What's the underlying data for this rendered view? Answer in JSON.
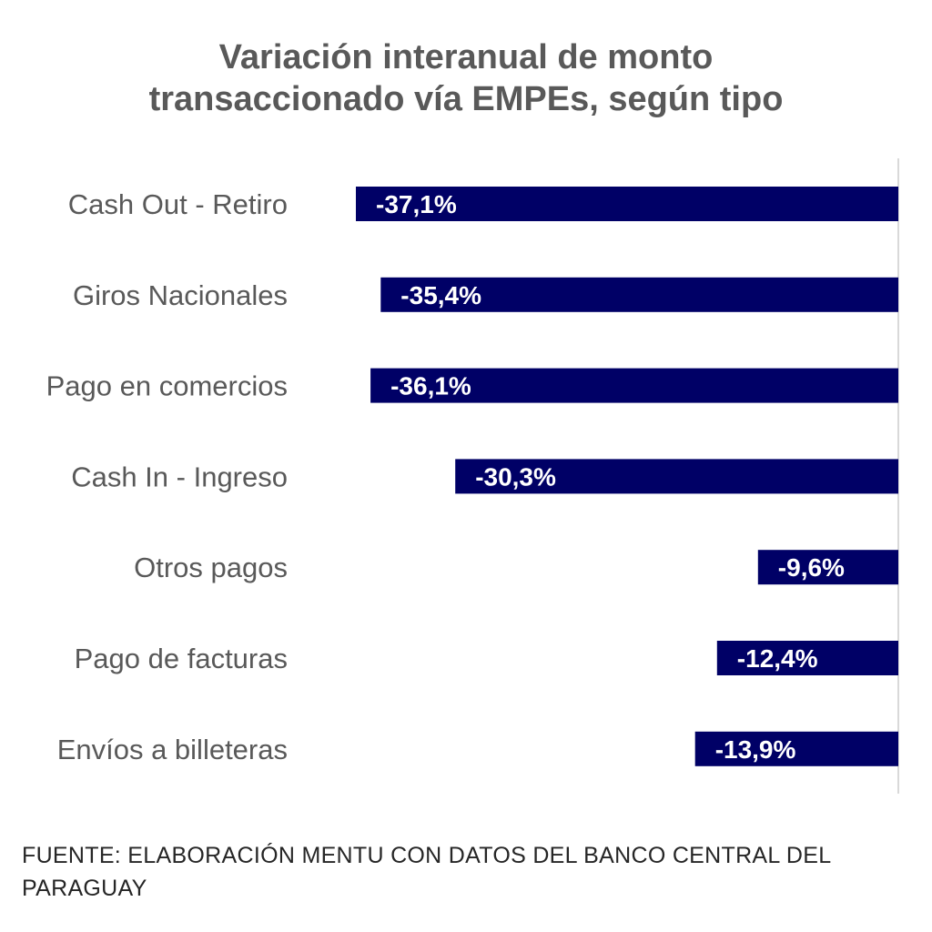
{
  "chart_data": {
    "type": "bar",
    "orientation": "horizontal",
    "title_lines": [
      "Variación interanual de monto",
      "transaccionado vía EMPEs, según tipo"
    ],
    "categories": [
      "Cash Out - Retiro",
      "Giros Nacionales",
      "Pago en comercios",
      "Cash In - Ingreso",
      "Otros pagos",
      "Pago de facturas",
      "Envíos a billeteras"
    ],
    "values": [
      -37.1,
      -35.4,
      -36.1,
      -30.3,
      -9.6,
      -12.4,
      -13.9
    ],
    "value_labels": [
      "-37,1%",
      "-35,4%",
      "-36,1%",
      "-30,3%",
      "-9,6%",
      "-12,4%",
      "-13,9%"
    ],
    "xlim": [
      -40,
      0
    ],
    "bar_color": "#000066",
    "grid": false,
    "legend": "none"
  },
  "source": "FUENTE: ELABORACIÓN MENTU CON DATOS DEL BANCO CENTRAL DEL PARAGUAY"
}
